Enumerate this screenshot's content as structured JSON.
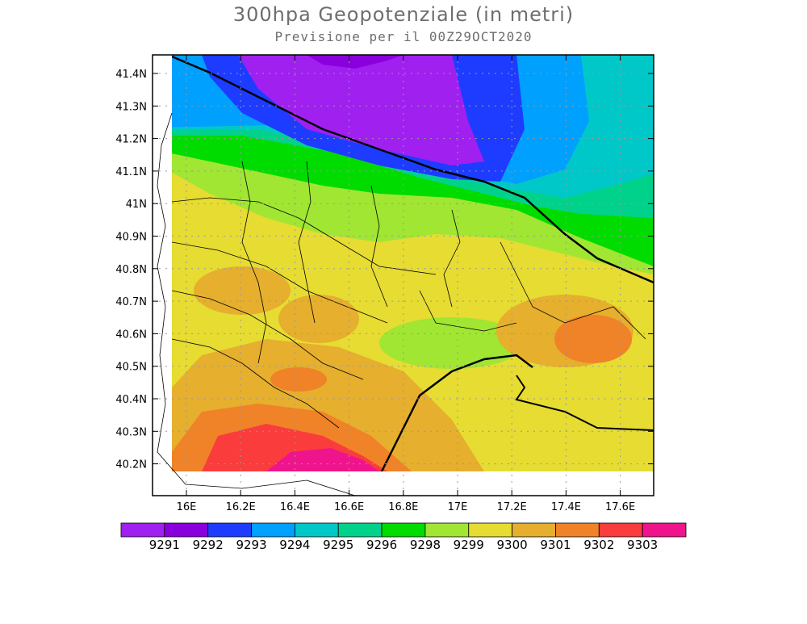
{
  "title": "300hpa Geopotenziale (in metri)",
  "subtitle": "Previsione per il  00Z29OCT2020",
  "lat_ticks": [
    "41.4N",
    "41.3N",
    "41.2N",
    "41.1N",
    "41N",
    "40.9N",
    "40.8N",
    "40.7N",
    "40.6N",
    "40.5N",
    "40.4N",
    "40.3N",
    "40.2N"
  ],
  "lon_ticks": [
    "16E",
    "16.2E",
    "16.4E",
    "16.6E",
    "16.8E",
    "17E",
    "17.2E",
    "17.4E",
    "17.6E"
  ],
  "legend": {
    "labels": [
      "9291",
      "9292",
      "9293",
      "9294",
      "9295",
      "9296",
      "9298",
      "9299",
      "9300",
      "9301",
      "9302",
      "9303"
    ],
    "colors": [
      "#a020f0",
      "#8a00dc",
      "#1e3cff",
      "#00a0ff",
      "#00c8c8",
      "#00d28c",
      "#00dc00",
      "#a0e632",
      "#e6dc32",
      "#e6af2d",
      "#f08228",
      "#fa3c3c",
      "#f0148c"
    ]
  }
}
